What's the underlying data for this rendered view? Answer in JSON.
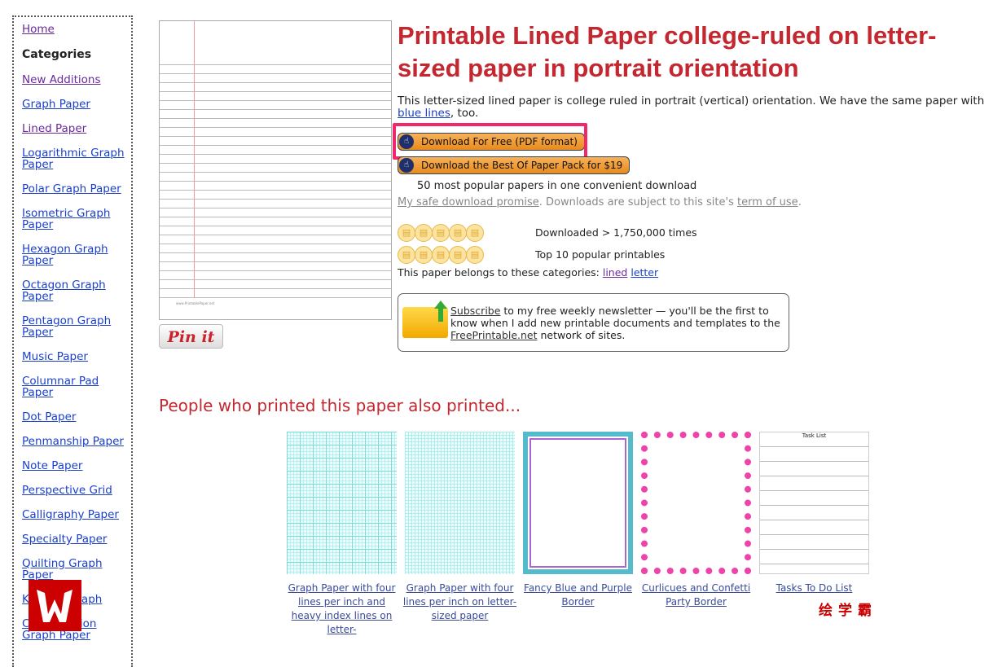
{
  "sidebar": {
    "home": "Home",
    "categories_heading": "Categories",
    "items": [
      "New Additions",
      "Graph Paper",
      "Lined Paper",
      "Logarithmic Graph Paper",
      "Polar Graph Paper",
      "Isometric Graph Paper",
      "Hexagon Graph Paper",
      "Octagon Graph Paper",
      "Pentagon Graph Paper",
      "Music Paper",
      "Columnar Pad Paper",
      "Dot Paper",
      "Penmanship Paper",
      "Note Paper",
      "Perspective Grid",
      "Calligraphy Paper",
      "Specialty Paper",
      "Quilting Graph Paper",
      "Knitting Graph",
      "Cross Section Graph Paper"
    ]
  },
  "preview": {
    "footer": "www.PrintablePaper.net",
    "pin_label": "Pin it"
  },
  "title": "Printable Lined Paper college-ruled on letter-sized paper in portrait orientation",
  "intro": {
    "text": "This letter-sized lined paper is college ruled in portrait (vertical) orientation. We have the same paper with ",
    "link": "blue lines",
    "after": ", too."
  },
  "buttons": {
    "download_free": "Download For Free (PDF format)",
    "download_pack": "Download the Best Of Paper Pack for $19"
  },
  "pack_note": "50 most popular papers in one convenient download",
  "promise": {
    "link": "My safe download promise",
    "text": ". Downloads are subject to this site's ",
    "terms": "term of use",
    "end": "."
  },
  "stats": {
    "downloads": "Downloaded > 1,750,000 times",
    "rank": "Top 10 popular printables"
  },
  "categories_line": {
    "text": "This paper belongs to these categories: ",
    "links": [
      "lined",
      "letter"
    ]
  },
  "newsletter": {
    "link": "Subscribe",
    "text1": " to my free weekly newsletter — you'll be the first to know when I add new printable documents and templates to the ",
    "site": "FreePrintable.net",
    "text2": " network of sites."
  },
  "also_heading": "People who printed this paper also printed...",
  "related": [
    {
      "caption": "Graph Paper with four lines per inch and heavy index lines on letter-"
    },
    {
      "caption": "Graph Paper with four lines per inch on letter-sized paper"
    },
    {
      "caption": "Fancy Blue and Purple Border"
    },
    {
      "caption": "Curlicues and Confetti Party Border"
    },
    {
      "caption": "Tasks To Do List",
      "thumb_title": "Task List"
    }
  ],
  "watermark": {
    "logo": "W",
    "text": "绘学霸"
  },
  "colors": {
    "title": "#c3272f",
    "link": "#1a3fc9",
    "highlight": "#f0286a",
    "button": "#f0a040"
  }
}
